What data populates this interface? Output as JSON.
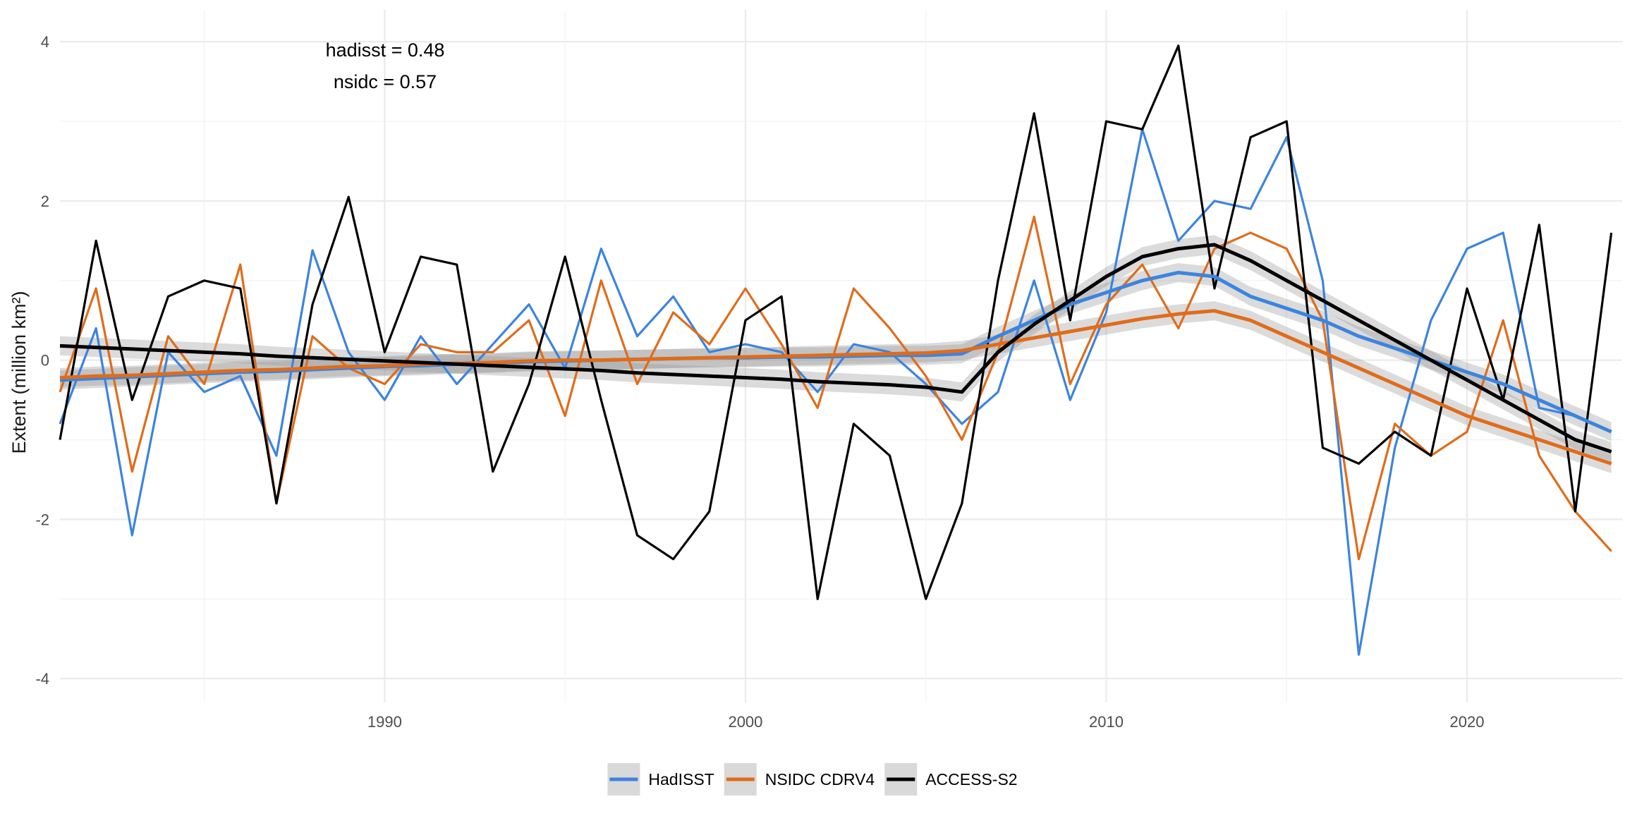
{
  "chart_data": {
    "type": "line",
    "xlabel": "",
    "ylabel": "Extent (million km²)",
    "xlim": [
      1981,
      2024.3
    ],
    "ylim": [
      -4.3,
      4.4
    ],
    "x_ticks": [
      1990,
      2000,
      2010,
      2020
    ],
    "x_tick_labels": [
      "1990",
      "2000",
      "2010",
      "2020"
    ],
    "y_ticks": [
      -4,
      -2,
      0,
      2,
      4
    ],
    "y_tick_labels": [
      "-4",
      "-2",
      "0",
      "2",
      "4"
    ],
    "grid": true,
    "legend_position": "bottom",
    "annotations": [
      "hadisst = 0.48",
      "nsidc = 0.57"
    ],
    "series": [
      {
        "name": "HadISST",
        "color": "#3c84de",
        "x": [
          1981,
          1982,
          1983,
          1984,
          1985,
          1986,
          1987,
          1988,
          1989,
          1990,
          1991,
          1992,
          1993,
          1994,
          1995,
          1996,
          1997,
          1998,
          1999,
          2000,
          2001,
          2002,
          2003,
          2004,
          2005,
          2006,
          2007,
          2008,
          2009,
          2010,
          2011,
          2012,
          2013,
          2014,
          2015,
          2016,
          2017,
          2018,
          2019,
          2020,
          2021,
          2022,
          2023,
          2024
        ],
        "y": [
          -0.8,
          0.4,
          -2.2,
          0.1,
          -0.4,
          -0.2,
          -1.2,
          1.38,
          0.1,
          -0.5,
          0.3,
          -0.3,
          0.2,
          0.7,
          -0.1,
          1.4,
          0.3,
          0.8,
          0.1,
          0.2,
          0.1,
          -0.4,
          0.2,
          0.1,
          -0.3,
          -0.8,
          -0.4,
          1.0,
          -0.5,
          0.6,
          2.9,
          1.5,
          2.0,
          1.9,
          2.8,
          1.0,
          -3.7,
          -1.1,
          0.5,
          1.4,
          1.6,
          -0.6,
          -0.7,
          -0.9
        ],
        "trend": [
          -0.25,
          -0.23,
          -0.21,
          -0.19,
          -0.17,
          -0.15,
          -0.14,
          -0.12,
          -0.1,
          -0.08,
          -0.07,
          -0.05,
          -0.04,
          -0.02,
          -0.01,
          0.0,
          0.01,
          0.02,
          0.03,
          0.03,
          0.04,
          0.04,
          0.05,
          0.06,
          0.06,
          0.08,
          0.3,
          0.5,
          0.7,
          0.85,
          1.0,
          1.1,
          1.05,
          0.8,
          0.65,
          0.5,
          0.3,
          0.15,
          0.0,
          -0.15,
          -0.3,
          -0.5,
          -0.7,
          -0.9
        ]
      },
      {
        "name": "NSIDC CDRV4",
        "color": "#e06c1a",
        "x": [
          1981,
          1982,
          1983,
          1984,
          1985,
          1986,
          1987,
          1988,
          1989,
          1990,
          1991,
          1992,
          1993,
          1994,
          1995,
          1996,
          1997,
          1998,
          1999,
          2000,
          2001,
          2002,
          2003,
          2004,
          2005,
          2006,
          2007,
          2008,
          2009,
          2010,
          2011,
          2012,
          2013,
          2014,
          2015,
          2016,
          2017,
          2018,
          2019,
          2020,
          2021,
          2022,
          2023,
          2024
        ],
        "y": [
          -0.4,
          0.9,
          -1.4,
          0.3,
          -0.3,
          1.2,
          -1.8,
          0.3,
          -0.1,
          -0.3,
          0.2,
          0.1,
          0.1,
          0.5,
          -0.7,
          1.0,
          -0.3,
          0.6,
          0.2,
          0.9,
          0.2,
          -0.6,
          0.9,
          0.4,
          -0.2,
          -1.0,
          0.1,
          1.8,
          -0.3,
          0.7,
          1.2,
          0.4,
          1.4,
          1.6,
          1.4,
          0.5,
          -2.5,
          -0.8,
          -1.2,
          -0.9,
          0.5,
          -1.2,
          -1.9,
          -2.4
        ],
        "trend": [
          -0.22,
          -0.2,
          -0.19,
          -0.17,
          -0.15,
          -0.13,
          -0.12,
          -0.1,
          -0.08,
          -0.07,
          -0.05,
          -0.04,
          -0.03,
          -0.01,
          0.0,
          0.0,
          0.01,
          0.02,
          0.03,
          0.04,
          0.05,
          0.06,
          0.07,
          0.08,
          0.09,
          0.12,
          0.2,
          0.28,
          0.36,
          0.44,
          0.52,
          0.58,
          0.62,
          0.5,
          0.3,
          0.1,
          -0.1,
          -0.3,
          -0.5,
          -0.7,
          -0.85,
          -1.0,
          -1.15,
          -1.3
        ]
      },
      {
        "name": "ACCESS-S2",
        "color": "#000000",
        "x": [
          1981,
          1982,
          1983,
          1984,
          1985,
          1986,
          1987,
          1988,
          1989,
          1990,
          1991,
          1992,
          1993,
          1994,
          1995,
          1996,
          1997,
          1998,
          1999,
          2000,
          2001,
          2002,
          2003,
          2004,
          2005,
          2006,
          2007,
          2008,
          2009,
          2010,
          2011,
          2012,
          2013,
          2014,
          2015,
          2016,
          2017,
          2018,
          2019,
          2020,
          2021,
          2022,
          2023,
          2024
        ],
        "y": [
          -1.0,
          1.5,
          -0.5,
          0.8,
          1.0,
          0.9,
          -1.8,
          0.7,
          2.05,
          0.1,
          1.3,
          1.2,
          -1.4,
          -0.3,
          1.3,
          -0.5,
          -2.2,
          -2.5,
          -1.9,
          0.5,
          0.8,
          -3.0,
          -0.8,
          -1.2,
          -3.0,
          -1.8,
          1.0,
          3.1,
          0.5,
          3.0,
          2.9,
          3.95,
          0.9,
          2.8,
          3.0,
          -1.1,
          -1.3,
          -0.9,
          -1.2,
          0.9,
          -0.5,
          1.7,
          -1.9,
          1.6
        ],
        "trend": [
          0.18,
          0.16,
          0.14,
          0.12,
          0.1,
          0.08,
          0.05,
          0.03,
          0.01,
          -0.01,
          -0.03,
          -0.05,
          -0.07,
          -0.09,
          -0.11,
          -0.13,
          -0.16,
          -0.18,
          -0.2,
          -0.22,
          -0.24,
          -0.27,
          -0.29,
          -0.31,
          -0.34,
          -0.4,
          0.1,
          0.45,
          0.75,
          1.05,
          1.3,
          1.4,
          1.45,
          1.25,
          1.0,
          0.75,
          0.5,
          0.25,
          0.0,
          -0.25,
          -0.5,
          -0.75,
          -1.0,
          -1.15
        ]
      }
    ]
  }
}
